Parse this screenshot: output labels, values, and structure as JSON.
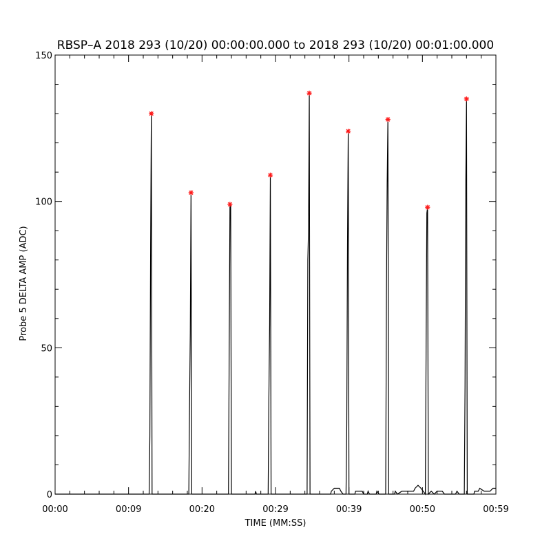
{
  "chart_data": {
    "type": "line",
    "title": "RBSP–A 2018 293 (10/20) 00:00:00.000 to 2018 293 (10/20) 00:01:00.000",
    "xlabel": "TIME (MM:SS)",
    "ylabel": "Probe 5 DELTA AMP (ADC)",
    "xlim": [
      0,
      60
    ],
    "ylim": [
      0,
      150
    ],
    "x_ticks": [
      {
        "value": 0,
        "label": "00:00"
      },
      {
        "value": 10,
        "label": "00:09"
      },
      {
        "value": 20,
        "label": "00:20"
      },
      {
        "value": 30,
        "label": "00:29"
      },
      {
        "value": 40,
        "label": "00:39"
      },
      {
        "value": 50,
        "label": "00:50"
      },
      {
        "value": 60,
        "label": "00:59"
      }
    ],
    "y_ticks": [
      {
        "value": 0,
        "label": "0"
      },
      {
        "value": 50,
        "label": "50"
      },
      {
        "value": 100,
        "label": "100"
      },
      {
        "value": 150,
        "label": "150"
      }
    ],
    "series": [
      {
        "values": [
          [
            0,
            0
          ],
          [
            12.8,
            0
          ],
          [
            12.9,
            20
          ],
          [
            13.0,
            85
          ],
          [
            13.1,
            130
          ],
          [
            13.2,
            0
          ],
          [
            18.2,
            0
          ],
          [
            18.3,
            30
          ],
          [
            18.4,
            55
          ],
          [
            18.5,
            103
          ],
          [
            18.6,
            0
          ],
          [
            23.6,
            0
          ],
          [
            23.7,
            50
          ],
          [
            23.8,
            99
          ],
          [
            23.9,
            98
          ],
          [
            24.0,
            0
          ],
          [
            27.2,
            0
          ],
          [
            27.3,
            1
          ],
          [
            27.4,
            0
          ],
          [
            29.0,
            0
          ],
          [
            29.1,
            33
          ],
          [
            29.2,
            58
          ],
          [
            29.3,
            109
          ],
          [
            29.4,
            0
          ],
          [
            34.3,
            0
          ],
          [
            34.4,
            80
          ],
          [
            34.5,
            91
          ],
          [
            34.6,
            137
          ],
          [
            34.7,
            0
          ],
          [
            37.5,
            0
          ],
          [
            37.6,
            1
          ],
          [
            38.0,
            2
          ],
          [
            38.7,
            2
          ],
          [
            38.9,
            1
          ],
          [
            39.2,
            0
          ],
          [
            39.6,
            0
          ],
          [
            39.7,
            24
          ],
          [
            39.8,
            85
          ],
          [
            39.9,
            124
          ],
          [
            40.0,
            0
          ],
          [
            40.8,
            0
          ],
          [
            40.9,
            1
          ],
          [
            41.8,
            1
          ],
          [
            42.0,
            0
          ],
          [
            42.5,
            0
          ],
          [
            42.6,
            1
          ],
          [
            42.8,
            0
          ],
          [
            43.7,
            0
          ],
          [
            43.8,
            1
          ],
          [
            44.1,
            0
          ],
          [
            45.0,
            0
          ],
          [
            45.1,
            68
          ],
          [
            45.2,
            106
          ],
          [
            45.3,
            128
          ],
          [
            45.4,
            0
          ],
          [
            46.2,
            0
          ],
          [
            46.3,
            1
          ],
          [
            46.6,
            0
          ],
          [
            47.2,
            1
          ],
          [
            48.8,
            1
          ],
          [
            49.0,
            2
          ],
          [
            49.4,
            3
          ],
          [
            49.8,
            2
          ],
          [
            50.1,
            1
          ],
          [
            50.4,
            0
          ],
          [
            50.5,
            50
          ],
          [
            50.6,
            96
          ],
          [
            50.7,
            98
          ],
          [
            50.8,
            0
          ],
          [
            51.2,
            1
          ],
          [
            51.6,
            0
          ],
          [
            52.0,
            1
          ],
          [
            52.7,
            1
          ],
          [
            53.0,
            0
          ],
          [
            54.5,
            0
          ],
          [
            54.7,
            1
          ],
          [
            55.0,
            0
          ],
          [
            55.7,
            0
          ],
          [
            55.8,
            37
          ],
          [
            55.9,
            105
          ],
          [
            56.0,
            135
          ],
          [
            56.1,
            0
          ],
          [
            57.0,
            0
          ],
          [
            57.1,
            1
          ],
          [
            57.6,
            1
          ],
          [
            57.8,
            2
          ],
          [
            58.4,
            1
          ],
          [
            59.2,
            1
          ],
          [
            59.6,
            2
          ],
          [
            60.0,
            2
          ]
        ],
        "color": "#000000"
      }
    ],
    "peak_markers": {
      "color": "#ff1a1a",
      "points": [
        [
          13.1,
          130
        ],
        [
          18.5,
          103
        ],
        [
          23.8,
          99
        ],
        [
          29.3,
          109
        ],
        [
          34.6,
          137
        ],
        [
          39.9,
          124
        ],
        [
          45.3,
          128
        ],
        [
          50.7,
          98
        ],
        [
          56.0,
          135
        ]
      ]
    },
    "grid": false,
    "legend": "none"
  }
}
